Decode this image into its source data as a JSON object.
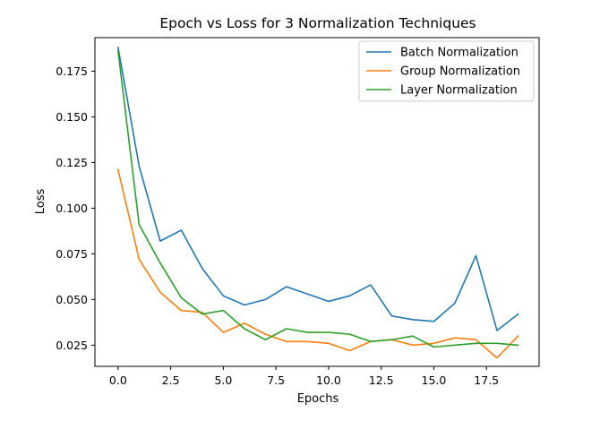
{
  "chart_data": {
    "type": "line",
    "title": "Epoch vs Loss for 3 Normalization Techniques",
    "xlabel": "Epochs",
    "ylabel": "Loss",
    "xlim": [
      -1.1,
      20.0
    ],
    "ylim": [
      0.0134,
      0.1934
    ],
    "x_ticks": [
      0.0,
      2.5,
      5.0,
      7.5,
      10.0,
      12.5,
      15.0,
      17.5
    ],
    "x_tick_labels": [
      "0.0",
      "2.5",
      "5.0",
      "7.5",
      "10.0",
      "12.5",
      "15.0",
      "17.5"
    ],
    "y_ticks": [
      0.025,
      0.05,
      0.075,
      0.1,
      0.125,
      0.15,
      0.175
    ],
    "y_tick_labels": [
      "0.025",
      "0.050",
      "0.075",
      "0.100",
      "0.125",
      "0.150",
      "0.175"
    ],
    "grid": false,
    "legend_position": "top-right",
    "x": [
      0,
      1,
      2,
      3,
      4,
      5,
      6,
      7,
      8,
      9,
      10,
      11,
      12,
      13,
      14,
      15,
      16,
      17,
      18,
      19
    ],
    "series": [
      {
        "name": "Batch Normalization",
        "color": "#1f77b4",
        "values": [
          0.188,
          0.123,
          0.082,
          0.088,
          0.067,
          0.052,
          0.047,
          0.05,
          0.057,
          0.053,
          0.049,
          0.052,
          0.058,
          0.041,
          0.039,
          0.038,
          0.048,
          0.074,
          0.033,
          0.042
        ]
      },
      {
        "name": "Group Normalization",
        "color": "#ff7f0e",
        "values": [
          0.121,
          0.072,
          0.054,
          0.044,
          0.043,
          0.032,
          0.037,
          0.031,
          0.027,
          0.027,
          0.026,
          0.022,
          0.027,
          0.028,
          0.025,
          0.026,
          0.029,
          0.028,
          0.018,
          0.03
        ]
      },
      {
        "name": "Layer Normalization",
        "color": "#2ca02c",
        "values": [
          0.186,
          0.091,
          0.07,
          0.051,
          0.042,
          0.044,
          0.034,
          0.028,
          0.034,
          0.032,
          0.032,
          0.031,
          0.027,
          0.028,
          0.03,
          0.024,
          0.025,
          0.026,
          0.026,
          0.025
        ]
      }
    ]
  }
}
